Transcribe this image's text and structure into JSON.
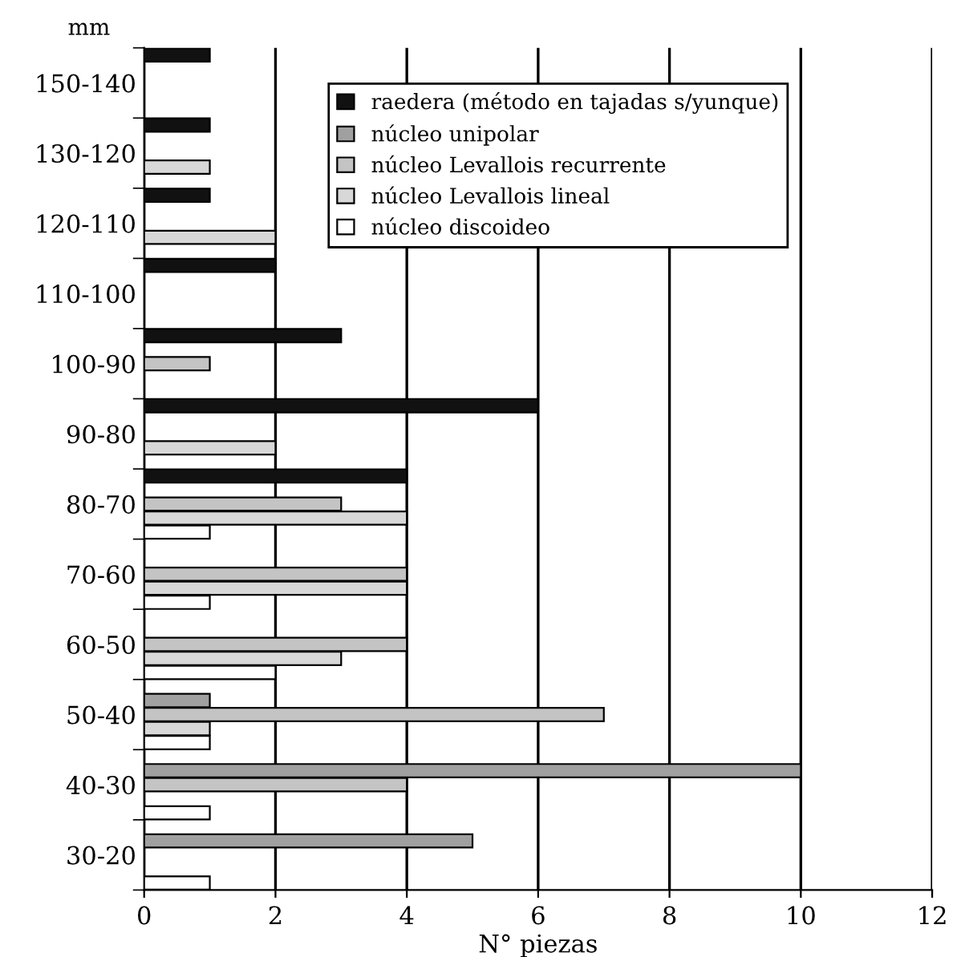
{
  "chart_data": {
    "type": "bar",
    "orientation": "horizontal",
    "ylabel": "mm",
    "xlabel": "N° piezas",
    "categories": [
      "150-140",
      "130-120",
      "120-110",
      "110-100",
      "100-90",
      "90-80",
      "80-70",
      "70-60",
      "60-50",
      "50-40",
      "40-30",
      "30-20"
    ],
    "series": [
      {
        "name": "raedera (método en tajadas s/yunque)",
        "color": "#111111",
        "values": [
          1,
          1,
          1,
          2,
          3,
          6,
          4,
          null,
          null,
          null,
          null,
          null
        ]
      },
      {
        "name": "núcleo unipolar",
        "color": "#a0a0a0",
        "values": [
          null,
          null,
          null,
          null,
          null,
          null,
          null,
          null,
          null,
          1,
          10,
          5
        ]
      },
      {
        "name": "núcleo Levallois recurrente",
        "color": "#c4c4c4",
        "values": [
          null,
          null,
          null,
          null,
          1,
          null,
          3,
          4,
          4,
          7,
          4,
          null
        ]
      },
      {
        "name": "núcleo Levallois lineal",
        "color": "#d8d8d8",
        "values": [
          null,
          1,
          2,
          null,
          null,
          2,
          4,
          4,
          3,
          1,
          null,
          null
        ]
      },
      {
        "name": "núcleo discoideo",
        "color": "#ffffff",
        "values": [
          null,
          null,
          null,
          null,
          null,
          null,
          1,
          1,
          2,
          1,
          1,
          1
        ]
      }
    ],
    "xlim": [
      0,
      12
    ],
    "xticks": [
      0,
      2,
      4,
      6,
      8,
      10,
      12
    ],
    "grid": "x",
    "legend": "top right"
  }
}
